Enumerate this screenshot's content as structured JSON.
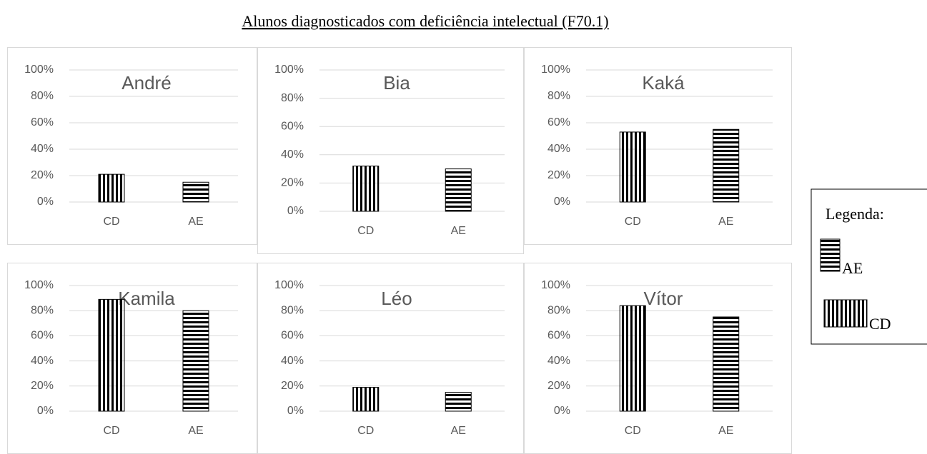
{
  "title": "Alunos diagnosticados com deficiência intelectual (F70.1)",
  "legend": {
    "title": "Legenda:",
    "items": [
      {
        "name": "AE",
        "pattern": "horizontal"
      },
      {
        "name": "CD",
        "pattern": "vertical"
      }
    ]
  },
  "chart_data": [
    {
      "type": "bar",
      "title": "André",
      "categories": [
        "CD",
        "AE"
      ],
      "values": [
        21,
        15
      ],
      "ylim": [
        0,
        100
      ],
      "yticks": [
        {
          "value": 0,
          "label": "0%"
        },
        {
          "value": 20,
          "label": "20%"
        },
        {
          "value": 40,
          "label": "40%"
        },
        {
          "value": 60,
          "label": "60%"
        },
        {
          "value": 80,
          "label": "80%"
        },
        {
          "value": 100,
          "label": "100%"
        }
      ],
      "grid": true
    },
    {
      "type": "bar",
      "title": "Bia",
      "categories": [
        "CD",
        "AE"
      ],
      "values": [
        32,
        30
      ],
      "ylim": [
        0,
        100
      ],
      "yticks": [
        {
          "value": 0,
          "label": "0%"
        },
        {
          "value": 20,
          "label": "20%"
        },
        {
          "value": 40,
          "label": "40%"
        },
        {
          "value": 60,
          "label": "60%"
        },
        {
          "value": 80,
          "label": "80%"
        },
        {
          "value": 100,
          "label": "100%"
        }
      ],
      "grid": true
    },
    {
      "type": "bar",
      "title": "Kaká",
      "categories": [
        "CD",
        "AE"
      ],
      "values": [
        53,
        55
      ],
      "ylim": [
        0,
        100
      ],
      "yticks": [
        {
          "value": 0,
          "label": "0%"
        },
        {
          "value": 20,
          "label": "20%"
        },
        {
          "value": 40,
          "label": "40%"
        },
        {
          "value": 60,
          "label": "60%"
        },
        {
          "value": 80,
          "label": "80%"
        },
        {
          "value": 100,
          "label": "100%"
        }
      ],
      "grid": true
    },
    {
      "type": "bar",
      "title": "Kamila",
      "categories": [
        "CD",
        "AE"
      ],
      "values": [
        89,
        80
      ],
      "ylim": [
        0,
        100
      ],
      "yticks": [
        {
          "value": 0,
          "label": "0%"
        },
        {
          "value": 20,
          "label": "20%"
        },
        {
          "value": 40,
          "label": "40%"
        },
        {
          "value": 60,
          "label": "60%"
        },
        {
          "value": 80,
          "label": "80%"
        },
        {
          "value": 100,
          "label": "100%"
        }
      ],
      "grid": true
    },
    {
      "type": "bar",
      "title": "Léo",
      "categories": [
        "CD",
        "AE"
      ],
      "values": [
        19,
        15
      ],
      "ylim": [
        0,
        100
      ],
      "yticks": [
        {
          "value": 0,
          "label": "0%"
        },
        {
          "value": 20,
          "label": "20%"
        },
        {
          "value": 40,
          "label": "40%"
        },
        {
          "value": 60,
          "label": "60%"
        },
        {
          "value": 80,
          "label": "80%"
        },
        {
          "value": 100,
          "label": "100%"
        }
      ],
      "grid": true
    },
    {
      "type": "bar",
      "title": "Vítor",
      "categories": [
        "CD",
        "AE"
      ],
      "values": [
        84,
        75
      ],
      "ylim": [
        0,
        100
      ],
      "yticks": [
        {
          "value": 0,
          "label": "0%"
        },
        {
          "value": 20,
          "label": "20%"
        },
        {
          "value": 40,
          "label": "40%"
        },
        {
          "value": 60,
          "label": "60%"
        },
        {
          "value": 80,
          "label": "80%"
        },
        {
          "value": 100,
          "label": "100%"
        }
      ],
      "grid": true
    }
  ]
}
